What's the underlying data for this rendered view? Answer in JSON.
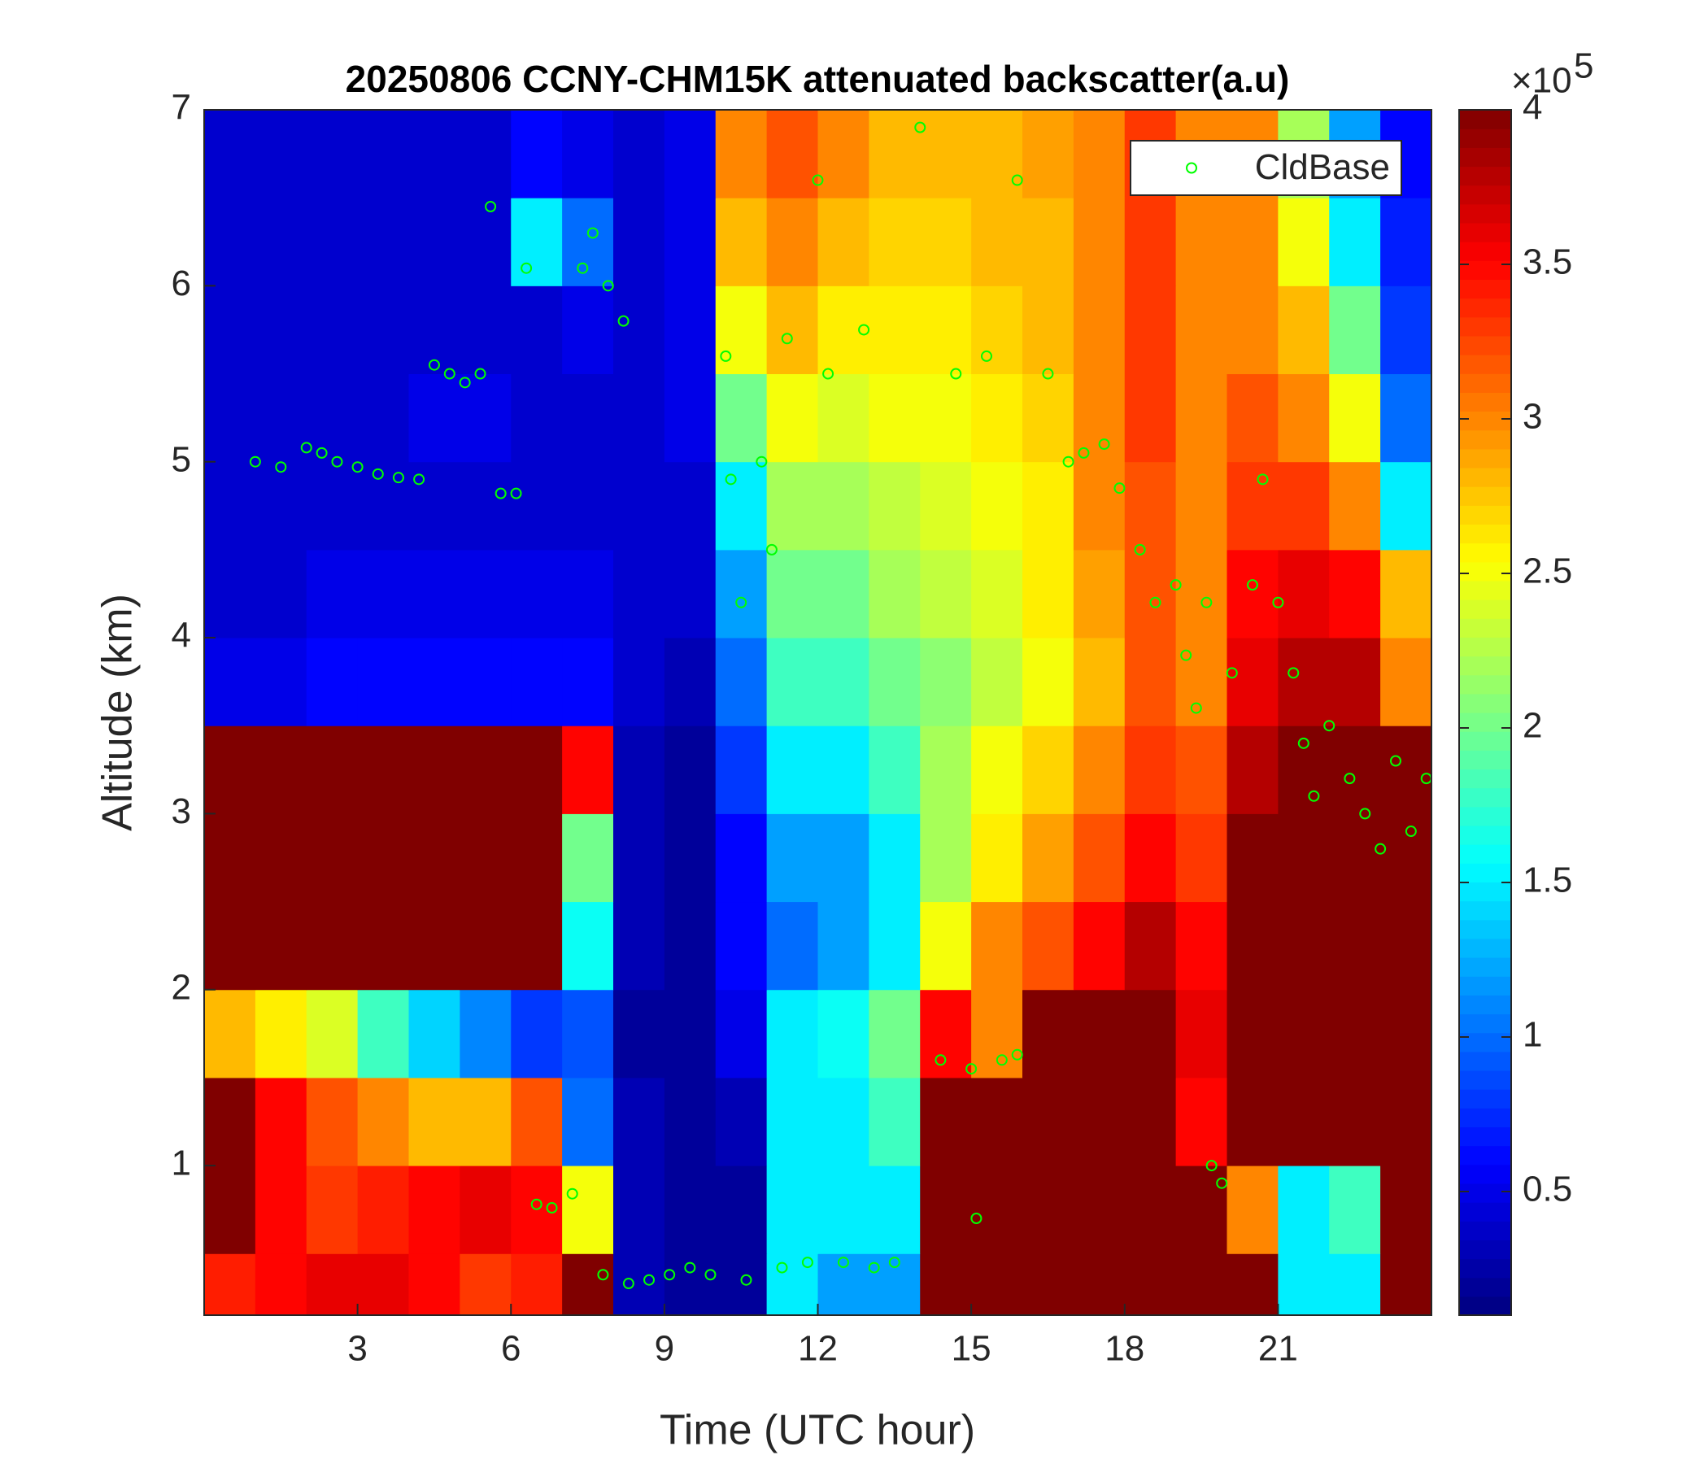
{
  "chart_data": {
    "type": "heatmap",
    "title": "20250806 CCNY-CHM15K attenuated backscatter(a.u)",
    "x_label": "Time (UTC hour)",
    "y_label": "Altitude (km)",
    "xlim": [
      0,
      24
    ],
    "ylim": [
      0.15,
      7
    ],
    "xticks": [
      3,
      6,
      9,
      12,
      15,
      18,
      21
    ],
    "yticks": [
      1,
      2,
      3,
      4,
      5,
      6,
      7
    ],
    "colormap": "jet",
    "clim": [
      0.1,
      4
    ],
    "cbar_ticks": [
      0.5,
      1,
      1.5,
      2,
      2.5,
      3,
      3.5,
      4
    ],
    "cbar_scale_base": "×10",
    "cbar_scale_exponent": 5,
    "x_edges": [
      0,
      1,
      2,
      3,
      4,
      5,
      6,
      7,
      8,
      9,
      10,
      11,
      12,
      13,
      14,
      15,
      16,
      17,
      18,
      19,
      20,
      21,
      22,
      23,
      24
    ],
    "y_edges": [
      0.15,
      0.5,
      1,
      1.5,
      2,
      2.5,
      3,
      3.5,
      4,
      4.5,
      5,
      5.5,
      6,
      6.5,
      7
    ],
    "z": [
      [
        3.4,
        3.5,
        3.6,
        3.6,
        3.5,
        3.3,
        3.4,
        4,
        0.3,
        0.2,
        0.2,
        1.5,
        1.2,
        1.2,
        4,
        4,
        4,
        4,
        4,
        4,
        4,
        1.5,
        1.5,
        4
      ],
      [
        4,
        3.5,
        3.3,
        3.4,
        3.5,
        3.6,
        3.5,
        2.5,
        0.3,
        0.2,
        0.2,
        1.5,
        1.5,
        1.5,
        4,
        4,
        4,
        4,
        4,
        4,
        3,
        1.5,
        1.8,
        4
      ],
      [
        4,
        3.5,
        3.2,
        3.0,
        2.8,
        2.8,
        3.2,
        1.0,
        0.3,
        0.2,
        0.3,
        1.5,
        1.5,
        1.8,
        4,
        4,
        4,
        4,
        4,
        3.5,
        4,
        4,
        4,
        4
      ],
      [
        2.8,
        2.6,
        2.4,
        1.8,
        1.4,
        1.1,
        0.8,
        0.9,
        0.2,
        0.2,
        0.5,
        1.5,
        1.6,
        2,
        3.5,
        3,
        4,
        4,
        4,
        3.6,
        4,
        4,
        4,
        4
      ],
      [
        4,
        4,
        4,
        4,
        4,
        4,
        4,
        1.6,
        0.3,
        0.2,
        0.6,
        1.0,
        1.2,
        1.5,
        2.5,
        3,
        3.2,
        3.5,
        3.8,
        3.5,
        4,
        4,
        4,
        4
      ],
      [
        4,
        4,
        4,
        4,
        4,
        4,
        4,
        2,
        0.3,
        0.2,
        0.6,
        1.2,
        1.2,
        1.5,
        2.2,
        2.6,
        2.9,
        3.2,
        3.5,
        3.3,
        4,
        4,
        4,
        4
      ],
      [
        4,
        4,
        4,
        4,
        4,
        4,
        4,
        3.5,
        0.3,
        0.2,
        0.8,
        1.5,
        1.5,
        1.8,
        2.2,
        2.5,
        2.7,
        3.0,
        3.3,
        3.2,
        3.8,
        4,
        4,
        4
      ],
      [
        0.5,
        0.5,
        0.6,
        0.6,
        0.6,
        0.6,
        0.6,
        0.6,
        0.4,
        0.3,
        1.0,
        1.8,
        1.8,
        2,
        2.1,
        2.3,
        2.5,
        2.8,
        3.2,
        3.0,
        3.6,
        3.8,
        3.8,
        3.0
      ],
      [
        0.4,
        0.4,
        0.5,
        0.5,
        0.5,
        0.5,
        0.5,
        0.5,
        0.4,
        0.4,
        1.2,
        2.0,
        2.0,
        2.2,
        2.3,
        2.4,
        2.6,
        2.9,
        3.2,
        3,
        3.5,
        3.6,
        3.5,
        2.8
      ],
      [
        0.4,
        0.4,
        0.4,
        0.4,
        0.4,
        0.4,
        0.4,
        0.4,
        0.4,
        0.4,
        1.5,
        2.2,
        2.2,
        2.3,
        2.4,
        2.5,
        2.6,
        3.0,
        3.2,
        3,
        3.3,
        3.3,
        3.0,
        1.5
      ],
      [
        0.4,
        0.4,
        0.4,
        0.4,
        0.5,
        0.5,
        0.4,
        0.4,
        0.4,
        0.5,
        2.0,
        2.5,
        2.4,
        2.5,
        2.5,
        2.6,
        2.7,
        3.0,
        3.3,
        3,
        3.2,
        3.0,
        2.5,
        1.0
      ],
      [
        0.4,
        0.4,
        0.4,
        0.4,
        0.4,
        0.4,
        0.4,
        0.5,
        0.4,
        0.5,
        2.5,
        2.8,
        2.6,
        2.6,
        2.6,
        2.7,
        2.8,
        3.0,
        3.3,
        3,
        3.0,
        2.8,
        2.0,
        0.8
      ],
      [
        0.4,
        0.4,
        0.4,
        0.4,
        0.4,
        0.4,
        1.5,
        1.0,
        0.4,
        0.5,
        2.8,
        3.0,
        2.8,
        2.7,
        2.7,
        2.8,
        2.8,
        3.0,
        3.3,
        3,
        3.0,
        2.5,
        1.5,
        0.7
      ],
      [
        0.4,
        0.4,
        0.4,
        0.4,
        0.4,
        0.4,
        0.6,
        0.5,
        0.4,
        0.5,
        3.0,
        3.2,
        3.0,
        2.8,
        2.8,
        2.8,
        2.9,
        3.0,
        3.3,
        3,
        3.0,
        2.2,
        1.2,
        0.6
      ]
    ],
    "overlay": {
      "type": "scatter",
      "name": "CldBase",
      "color": "#00ff00",
      "x": [
        1.0,
        1.5,
        2.0,
        2.3,
        2.6,
        3.0,
        3.4,
        3.8,
        4.2,
        4.5,
        4.8,
        5.1,
        5.4,
        5.6,
        5.8,
        6.1,
        6.3,
        6.5,
        6.8,
        7.2,
        7.4,
        7.6,
        7.9,
        8.2,
        7.8,
        8.3,
        8.7,
        9.1,
        9.5,
        9.9,
        10.2,
        10.3,
        10.5,
        10.6,
        10.9,
        11.1,
        11.3,
        11.4,
        11.8,
        12.0,
        12.2,
        12.5,
        12.9,
        13.1,
        13.5,
        14.0,
        14.4,
        14.7,
        15.0,
        15.1,
        15.3,
        15.6,
        15.9,
        15.9,
        16.5,
        16.9,
        17.2,
        17.6,
        17.9,
        18.3,
        18.6,
        19.0,
        19.2,
        19.4,
        19.6,
        19.7,
        19.9,
        20.1,
        20.5,
        20.7,
        21.0,
        21.3,
        21.5,
        21.7,
        22.0,
        22.4,
        22.7,
        23.0,
        23.3,
        23.6,
        23.9
      ],
      "y": [
        5.0,
        4.97,
        5.08,
        5.05,
        5.0,
        4.97,
        4.93,
        4.91,
        4.9,
        5.55,
        5.5,
        5.45,
        5.5,
        6.45,
        4.82,
        4.82,
        6.1,
        0.78,
        0.76,
        0.84,
        6.1,
        6.3,
        6.0,
        5.8,
        0.38,
        0.33,
        0.35,
        0.38,
        0.42,
        0.38,
        5.6,
        4.9,
        4.2,
        0.35,
        5.0,
        4.5,
        0.42,
        5.7,
        0.45,
        6.6,
        5.5,
        0.45,
        5.75,
        0.42,
        0.45,
        6.9,
        1.6,
        5.5,
        1.55,
        0.7,
        5.6,
        1.6,
        1.63,
        6.6,
        5.5,
        5.0,
        5.05,
        5.1,
        4.85,
        4.5,
        4.2,
        4.3,
        3.9,
        3.6,
        4.2,
        1.0,
        0.9,
        3.8,
        4.3,
        4.9,
        4.2,
        3.8,
        3.4,
        3.1,
        3.5,
        3.2,
        3.0,
        2.8,
        3.3,
        2.9,
        3.2
      ]
    },
    "legend": "upper right"
  }
}
